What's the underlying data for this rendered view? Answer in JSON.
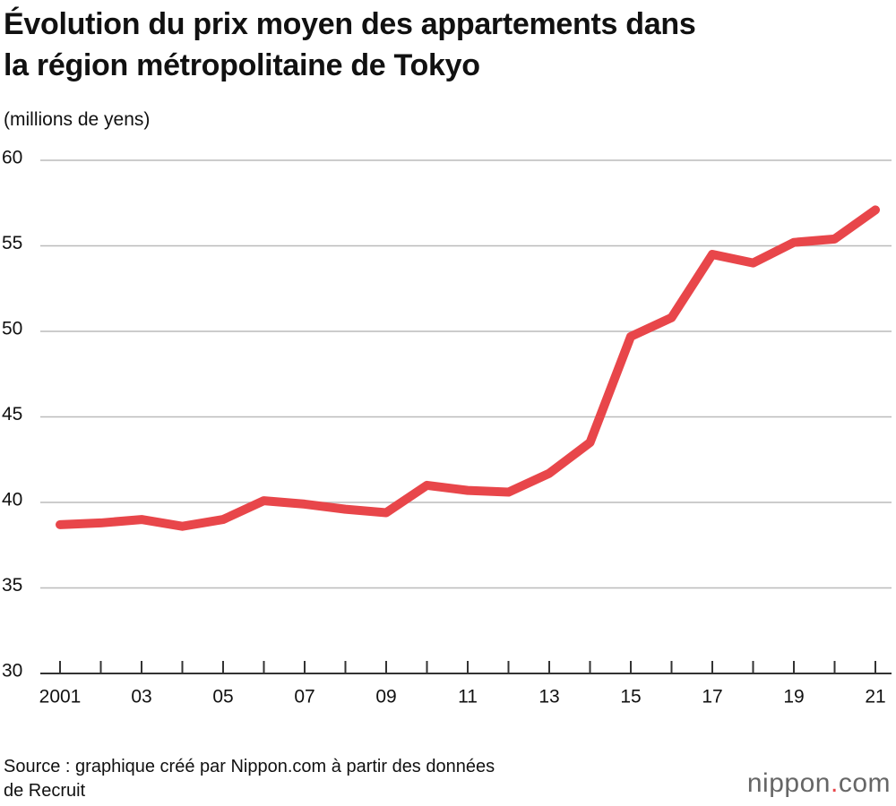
{
  "chart_data": {
    "type": "line",
    "title": "Évolution du prix moyen des appartements dans\nla région métropolitaine de Tokyo",
    "y_label": "(millions de yens)",
    "categories": [
      "2001",
      null,
      "03",
      null,
      "05",
      null,
      "07",
      null,
      "09",
      null,
      "11",
      null,
      "13",
      null,
      "15",
      null,
      "17",
      null,
      "19",
      null,
      "21"
    ],
    "series": [
      {
        "color": "#e8464a",
        "values": [
          38.7,
          38.8,
          39.0,
          38.6,
          39.0,
          40.1,
          39.9,
          39.6,
          39.4,
          41.0,
          40.7,
          40.6,
          41.7,
          43.5,
          49.7,
          50.8,
          54.5,
          54.0,
          55.2,
          55.4,
          57.1
        ]
      }
    ],
    "ylim": [
      30,
      60
    ],
    "yticks": [
      30,
      35,
      40,
      45,
      50,
      55,
      60
    ],
    "grid": true,
    "source": "Source : graphique créé par Nippon.com à partir des données\nde Recruit",
    "logo": [
      "nippon",
      ".",
      "com"
    ]
  }
}
